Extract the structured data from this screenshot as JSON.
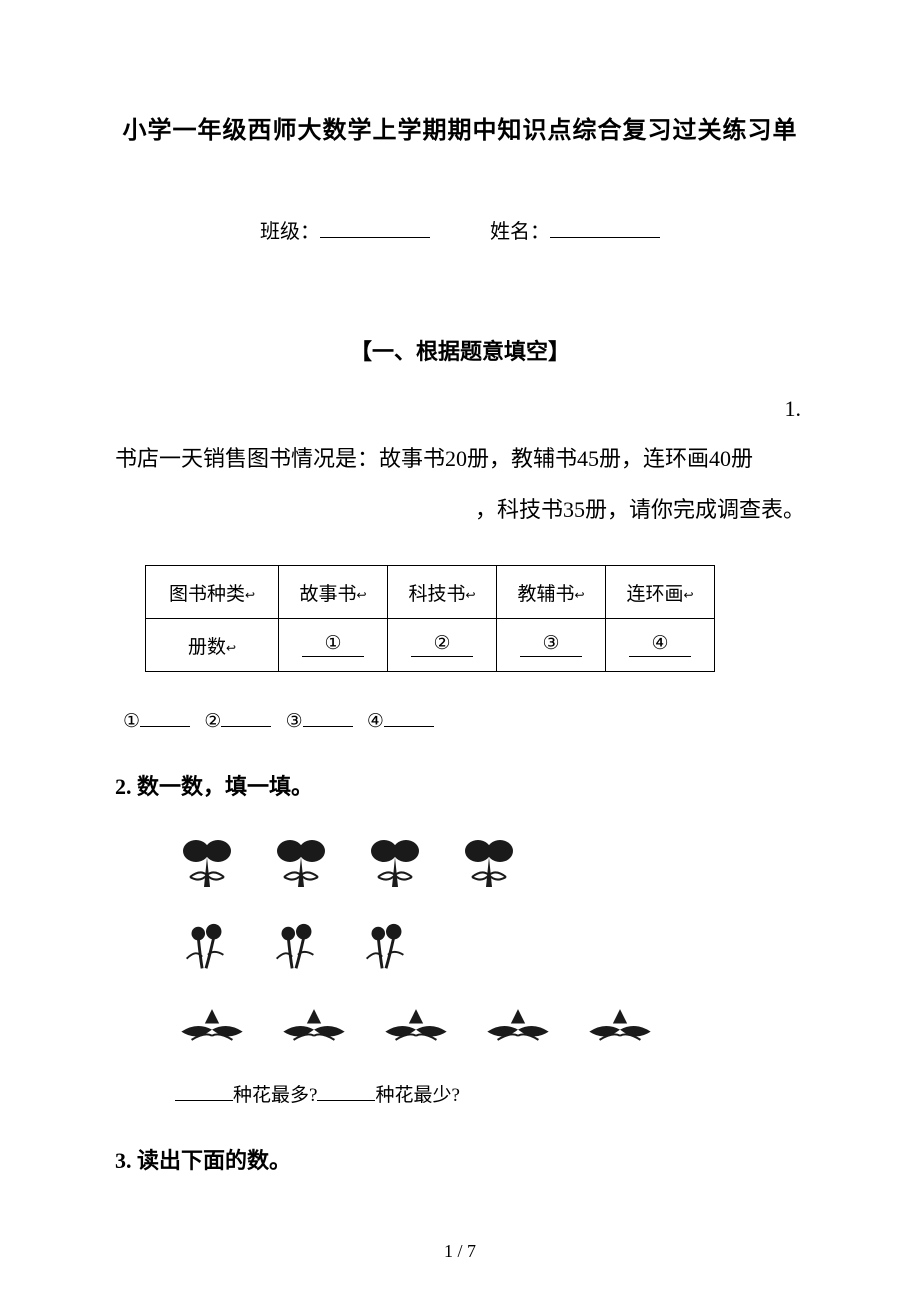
{
  "title": "小学一年级西师大数学上学期期中知识点综合复习过关练习单",
  "form": {
    "class_label": "班级：",
    "name_label": "姓名："
  },
  "section1": {
    "heading": "【一、根据题意填空】",
    "q1": {
      "number": "1.",
      "line1": "书店一天销售图书情况是：故事书20册，教辅书45册，连环画40册",
      "line2": "，科技书35册，请你完成调查表。",
      "table": {
        "header_label": "图书种类",
        "row_label": "册数",
        "columns": [
          "故事书",
          "科技书",
          "教辅书",
          "连环画"
        ],
        "markers": [
          "①",
          "②",
          "③",
          "④"
        ]
      },
      "blanks_labels": [
        "①",
        "②",
        "③",
        "④"
      ]
    },
    "q2": {
      "label": "2. 数一数，填一填。",
      "flowers": {
        "row1_count": 4,
        "row2_count": 3,
        "row3_count": 5
      },
      "question_most": "种花最多?",
      "question_least": "种花最少?"
    },
    "q3": {
      "label": "3. 读出下面的数。"
    }
  },
  "footer": {
    "page": "1 / 7"
  },
  "style": {
    "blank_width_class": 110,
    "blank_width_name": 110,
    "text_color": "#000000",
    "background": "#ffffff",
    "icon_fill": "#1a1a1a"
  }
}
